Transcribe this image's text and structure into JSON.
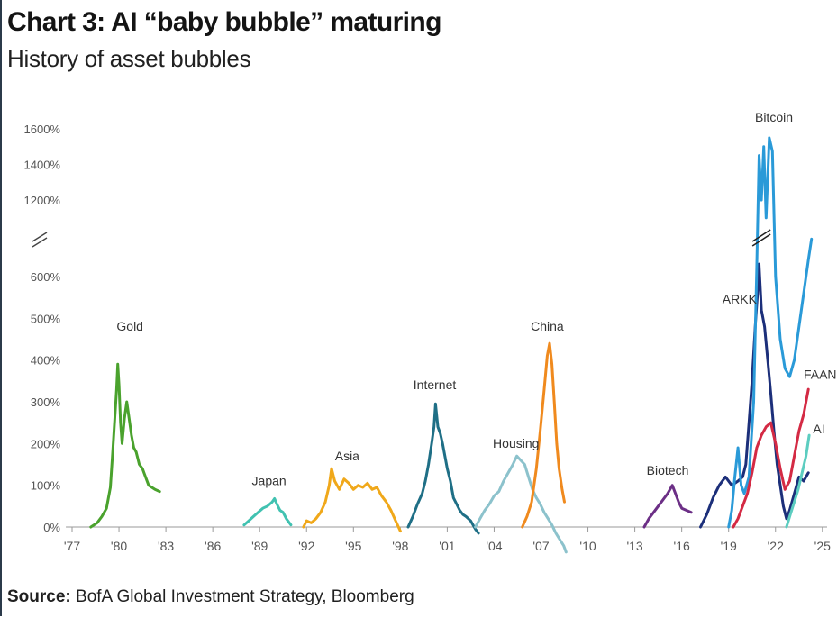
{
  "header": {
    "title": "Chart 3: AI “baby bubble” maturing",
    "subtitle": "History of asset bubbles"
  },
  "footer": {
    "source_label": "Source:",
    "source_text": "BofA Global Investment Strategy, Bloomberg"
  },
  "chart_data": {
    "type": "line",
    "title": "Chart 3: AI “baby bubble” maturing",
    "subtitle": "History of asset bubbles",
    "xlabel": "",
    "ylabel": "",
    "xlim": [
      1976.5,
      2026.5
    ],
    "x_ticks": [
      1977,
      1980,
      1983,
      1986,
      1989,
      1992,
      1995,
      1998,
      2001,
      2004,
      2007,
      2010,
      2013,
      2016,
      2019,
      2022,
      2025
    ],
    "x_tick_labels": [
      "'77",
      "'80",
      "'83",
      "'86",
      "'89",
      "'92",
      "'95",
      "'98",
      "'01",
      "'04",
      "'07",
      "'10",
      "'13",
      "'16",
      "'19",
      "'22",
      "'25"
    ],
    "y_axis": {
      "broken": true,
      "lower_range": [
        0,
        700
      ],
      "upper_range": [
        1050,
        1600
      ],
      "ticks": [
        0,
        100,
        200,
        300,
        400,
        500,
        600,
        1200,
        1400,
        1600
      ],
      "tick_labels": [
        "0%",
        "100%",
        "200%",
        "300%",
        "400%",
        "500%",
        "600%",
        "1200%",
        "1400%",
        "1600%"
      ]
    },
    "grid": false,
    "legend": "direct labels",
    "series": [
      {
        "name": "Gold",
        "color": "#4aa22d",
        "points": [
          [
            1978.2,
            0
          ],
          [
            1978.6,
            10
          ],
          [
            1978.9,
            25
          ],
          [
            1979.2,
            45
          ],
          [
            1979.45,
            95
          ],
          [
            1979.6,
            180
          ],
          [
            1979.75,
            270
          ],
          [
            1979.85,
            330
          ],
          [
            1979.92,
            390
          ],
          [
            1980.0,
            340
          ],
          [
            1980.1,
            250
          ],
          [
            1980.2,
            200
          ],
          [
            1980.35,
            260
          ],
          [
            1980.5,
            300
          ],
          [
            1980.65,
            260
          ],
          [
            1980.8,
            220
          ],
          [
            1980.95,
            190
          ],
          [
            1981.1,
            180
          ],
          [
            1981.3,
            150
          ],
          [
            1981.5,
            140
          ],
          [
            1981.7,
            120
          ],
          [
            1981.9,
            100
          ],
          [
            1982.1,
            95
          ],
          [
            1982.3,
            90
          ],
          [
            1982.6,
            85
          ]
        ]
      },
      {
        "name": "Japan",
        "color": "#41c2b1",
        "points": [
          [
            1988.0,
            5
          ],
          [
            1988.3,
            15
          ],
          [
            1988.6,
            25
          ],
          [
            1988.9,
            35
          ],
          [
            1989.2,
            45
          ],
          [
            1989.5,
            50
          ],
          [
            1989.8,
            60
          ],
          [
            1989.95,
            68
          ],
          [
            1990.1,
            55
          ],
          [
            1990.3,
            40
          ],
          [
            1990.5,
            35
          ],
          [
            1990.7,
            20
          ],
          [
            1991.0,
            5
          ]
        ]
      },
      {
        "name": "Asia",
        "color": "#f0a81a",
        "points": [
          [
            1991.8,
            0
          ],
          [
            1992.0,
            15
          ],
          [
            1992.3,
            10
          ],
          [
            1992.6,
            20
          ],
          [
            1992.9,
            35
          ],
          [
            1993.2,
            60
          ],
          [
            1993.45,
            100
          ],
          [
            1993.6,
            140
          ],
          [
            1993.8,
            110
          ],
          [
            1994.1,
            90
          ],
          [
            1994.4,
            115
          ],
          [
            1994.7,
            105
          ],
          [
            1995.0,
            90
          ],
          [
            1995.3,
            100
          ],
          [
            1995.6,
            95
          ],
          [
            1995.9,
            105
          ],
          [
            1996.2,
            90
          ],
          [
            1996.5,
            95
          ],
          [
            1996.8,
            75
          ],
          [
            1997.1,
            60
          ],
          [
            1997.4,
            40
          ],
          [
            1997.7,
            15
          ],
          [
            1998.0,
            -10
          ]
        ]
      },
      {
        "name": "Internet",
        "color": "#1f6f86",
        "points": [
          [
            1998.5,
            0
          ],
          [
            1998.8,
            25
          ],
          [
            1999.1,
            55
          ],
          [
            1999.4,
            80
          ],
          [
            1999.6,
            110
          ],
          [
            1999.8,
            150
          ],
          [
            2000.0,
            200
          ],
          [
            2000.15,
            240
          ],
          [
            2000.25,
            295
          ],
          [
            2000.4,
            240
          ],
          [
            2000.55,
            225
          ],
          [
            2000.7,
            200
          ],
          [
            2000.85,
            170
          ],
          [
            2001.0,
            140
          ],
          [
            2001.2,
            110
          ],
          [
            2001.4,
            70
          ],
          [
            2001.6,
            55
          ],
          [
            2001.8,
            40
          ],
          [
            2002.0,
            30
          ],
          [
            2002.2,
            25
          ],
          [
            2002.5,
            15
          ],
          [
            2002.8,
            -5
          ],
          [
            2003.0,
            -15
          ]
        ]
      },
      {
        "name": "Housing",
        "color": "#8cc2cc",
        "points": [
          [
            2002.8,
            0
          ],
          [
            2003.1,
            20
          ],
          [
            2003.4,
            40
          ],
          [
            2003.7,
            55
          ],
          [
            2004.0,
            75
          ],
          [
            2004.3,
            85
          ],
          [
            2004.6,
            110
          ],
          [
            2004.9,
            130
          ],
          [
            2005.2,
            150
          ],
          [
            2005.45,
            170
          ],
          [
            2005.7,
            160
          ],
          [
            2005.95,
            150
          ],
          [
            2006.2,
            120
          ],
          [
            2006.45,
            90
          ],
          [
            2006.7,
            70
          ],
          [
            2006.95,
            55
          ],
          [
            2007.2,
            35
          ],
          [
            2007.45,
            20
          ],
          [
            2007.7,
            5
          ],
          [
            2007.95,
            -15
          ],
          [
            2008.2,
            -30
          ],
          [
            2008.45,
            -45
          ],
          [
            2008.6,
            -60
          ]
        ]
      },
      {
        "name": "China",
        "color": "#f08a1e",
        "points": [
          [
            2005.8,
            0
          ],
          [
            2006.1,
            25
          ],
          [
            2006.4,
            60
          ],
          [
            2006.7,
            140
          ],
          [
            2006.95,
            230
          ],
          [
            2007.2,
            330
          ],
          [
            2007.4,
            410
          ],
          [
            2007.55,
            440
          ],
          [
            2007.7,
            390
          ],
          [
            2007.85,
            300
          ],
          [
            2008.0,
            200
          ],
          [
            2008.15,
            140
          ],
          [
            2008.35,
            90
          ],
          [
            2008.5,
            60
          ]
        ]
      },
      {
        "name": "Biotech",
        "color": "#6c2f86",
        "points": [
          [
            2013.6,
            0
          ],
          [
            2013.9,
            20
          ],
          [
            2014.2,
            35
          ],
          [
            2014.5,
            50
          ],
          [
            2014.8,
            65
          ],
          [
            2015.1,
            80
          ],
          [
            2015.4,
            100
          ],
          [
            2015.6,
            80
          ],
          [
            2015.8,
            60
          ],
          [
            2016.0,
            45
          ],
          [
            2016.3,
            40
          ],
          [
            2016.6,
            35
          ]
        ]
      },
      {
        "name": "ARKK",
        "color": "#1c2f7a",
        "points": [
          [
            2017.2,
            0
          ],
          [
            2017.6,
            30
          ],
          [
            2018.0,
            70
          ],
          [
            2018.4,
            100
          ],
          [
            2018.8,
            120
          ],
          [
            2019.2,
            100
          ],
          [
            2019.6,
            110
          ],
          [
            2019.9,
            120
          ],
          [
            2020.1,
            150
          ],
          [
            2020.3,
            250
          ],
          [
            2020.5,
            350
          ],
          [
            2020.7,
            480
          ],
          [
            2020.85,
            560
          ],
          [
            2020.95,
            630
          ],
          [
            2021.1,
            520
          ],
          [
            2021.3,
            480
          ],
          [
            2021.5,
            400
          ],
          [
            2021.7,
            320
          ],
          [
            2021.9,
            230
          ],
          [
            2022.1,
            150
          ],
          [
            2022.3,
            100
          ],
          [
            2022.5,
            50
          ],
          [
            2022.7,
            20
          ],
          [
            2022.9,
            40
          ],
          [
            2023.2,
            80
          ],
          [
            2023.5,
            120
          ],
          [
            2023.8,
            110
          ],
          [
            2024.1,
            130
          ]
        ]
      },
      {
        "name": "Bitcoin",
        "color": "#2a9ad8",
        "points": [
          [
            2019.0,
            0
          ],
          [
            2019.2,
            40
          ],
          [
            2019.4,
            120
          ],
          [
            2019.6,
            190
          ],
          [
            2019.8,
            100
          ],
          [
            2020.0,
            80
          ],
          [
            2020.3,
            120
          ],
          [
            2020.6,
            300
          ],
          [
            2020.8,
            620
          ],
          [
            2020.95,
            1450
          ],
          [
            2021.1,
            1200
          ],
          [
            2021.25,
            1500
          ],
          [
            2021.4,
            1100
          ],
          [
            2021.6,
            1550
          ],
          [
            2021.8,
            900
          ],
          [
            2022.0,
            600
          ],
          [
            2022.3,
            450
          ],
          [
            2022.6,
            380
          ],
          [
            2022.9,
            360
          ],
          [
            2023.2,
            400
          ],
          [
            2023.5,
            480
          ],
          [
            2023.8,
            560
          ],
          [
            2024.1,
            640
          ],
          [
            2024.3,
            690
          ]
        ]
      },
      {
        "name": "FAANG",
        "color": "#d42a44",
        "points": [
          [
            2019.3,
            0
          ],
          [
            2019.6,
            20
          ],
          [
            2019.9,
            50
          ],
          [
            2020.2,
            80
          ],
          [
            2020.5,
            130
          ],
          [
            2020.8,
            190
          ],
          [
            2021.1,
            220
          ],
          [
            2021.4,
            240
          ],
          [
            2021.7,
            250
          ],
          [
            2022.0,
            200
          ],
          [
            2022.3,
            140
          ],
          [
            2022.6,
            90
          ],
          [
            2022.9,
            110
          ],
          [
            2023.2,
            170
          ],
          [
            2023.5,
            230
          ],
          [
            2023.8,
            270
          ],
          [
            2024.1,
            330
          ]
        ]
      },
      {
        "name": "AI",
        "color": "#5ccdc0",
        "points": [
          [
            2022.7,
            0
          ],
          [
            2022.95,
            30
          ],
          [
            2023.2,
            60
          ],
          [
            2023.45,
            90
          ],
          [
            2023.7,
            130
          ],
          [
            2023.95,
            170
          ],
          [
            2024.15,
            220
          ]
        ]
      }
    ]
  }
}
